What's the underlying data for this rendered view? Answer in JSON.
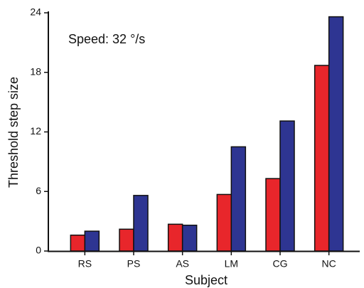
{
  "chart_data": {
    "type": "bar",
    "annotation": "Speed: 32 °/s",
    "xlabel": "Subject",
    "ylabel": "Threshold step size",
    "categories": [
      "RS",
      "PS",
      "AS",
      "LM",
      "CG",
      "NC"
    ],
    "series": [
      {
        "color": "#e8262b",
        "values": [
          1.6,
          2.2,
          2.7,
          5.7,
          7.3,
          18.7
        ]
      },
      {
        "color": "#2e3592",
        "values": [
          2.0,
          5.6,
          2.6,
          10.5,
          13.1,
          23.6
        ]
      }
    ],
    "ylim": [
      0,
      24
    ],
    "yticks": [
      0,
      6,
      12,
      18,
      24
    ]
  }
}
